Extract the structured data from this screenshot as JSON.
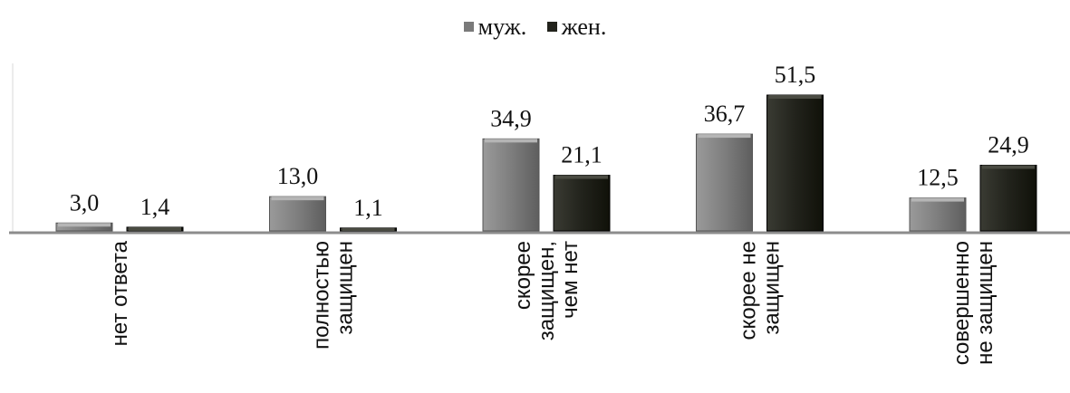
{
  "chart_data": {
    "type": "bar",
    "categories": [
      [
        "нет ответа"
      ],
      [
        "полностью",
        "защищен"
      ],
      [
        "скорее",
        "защищен,",
        "чем нет"
      ],
      [
        "скорее не",
        "защищен"
      ],
      [
        "совершенно",
        "не защищен"
      ]
    ],
    "series": [
      {
        "name": "муж.",
        "values": [
          3.0,
          13.0,
          34.9,
          36.7,
          12.5
        ],
        "labels": [
          "3,0",
          "13,0",
          "34,9",
          "36,7",
          "12,5"
        ],
        "color": "#7a7a7a"
      },
      {
        "name": "жен.",
        "values": [
          1.4,
          1.1,
          21.1,
          51.5,
          24.9
        ],
        "labels": [
          "1,4",
          "1,1",
          "21,1",
          "51,5",
          "24,9"
        ],
        "color": "#22231c"
      }
    ],
    "ylim": [
      0,
      55
    ],
    "legend_position": "top-center",
    "grid": false
  }
}
